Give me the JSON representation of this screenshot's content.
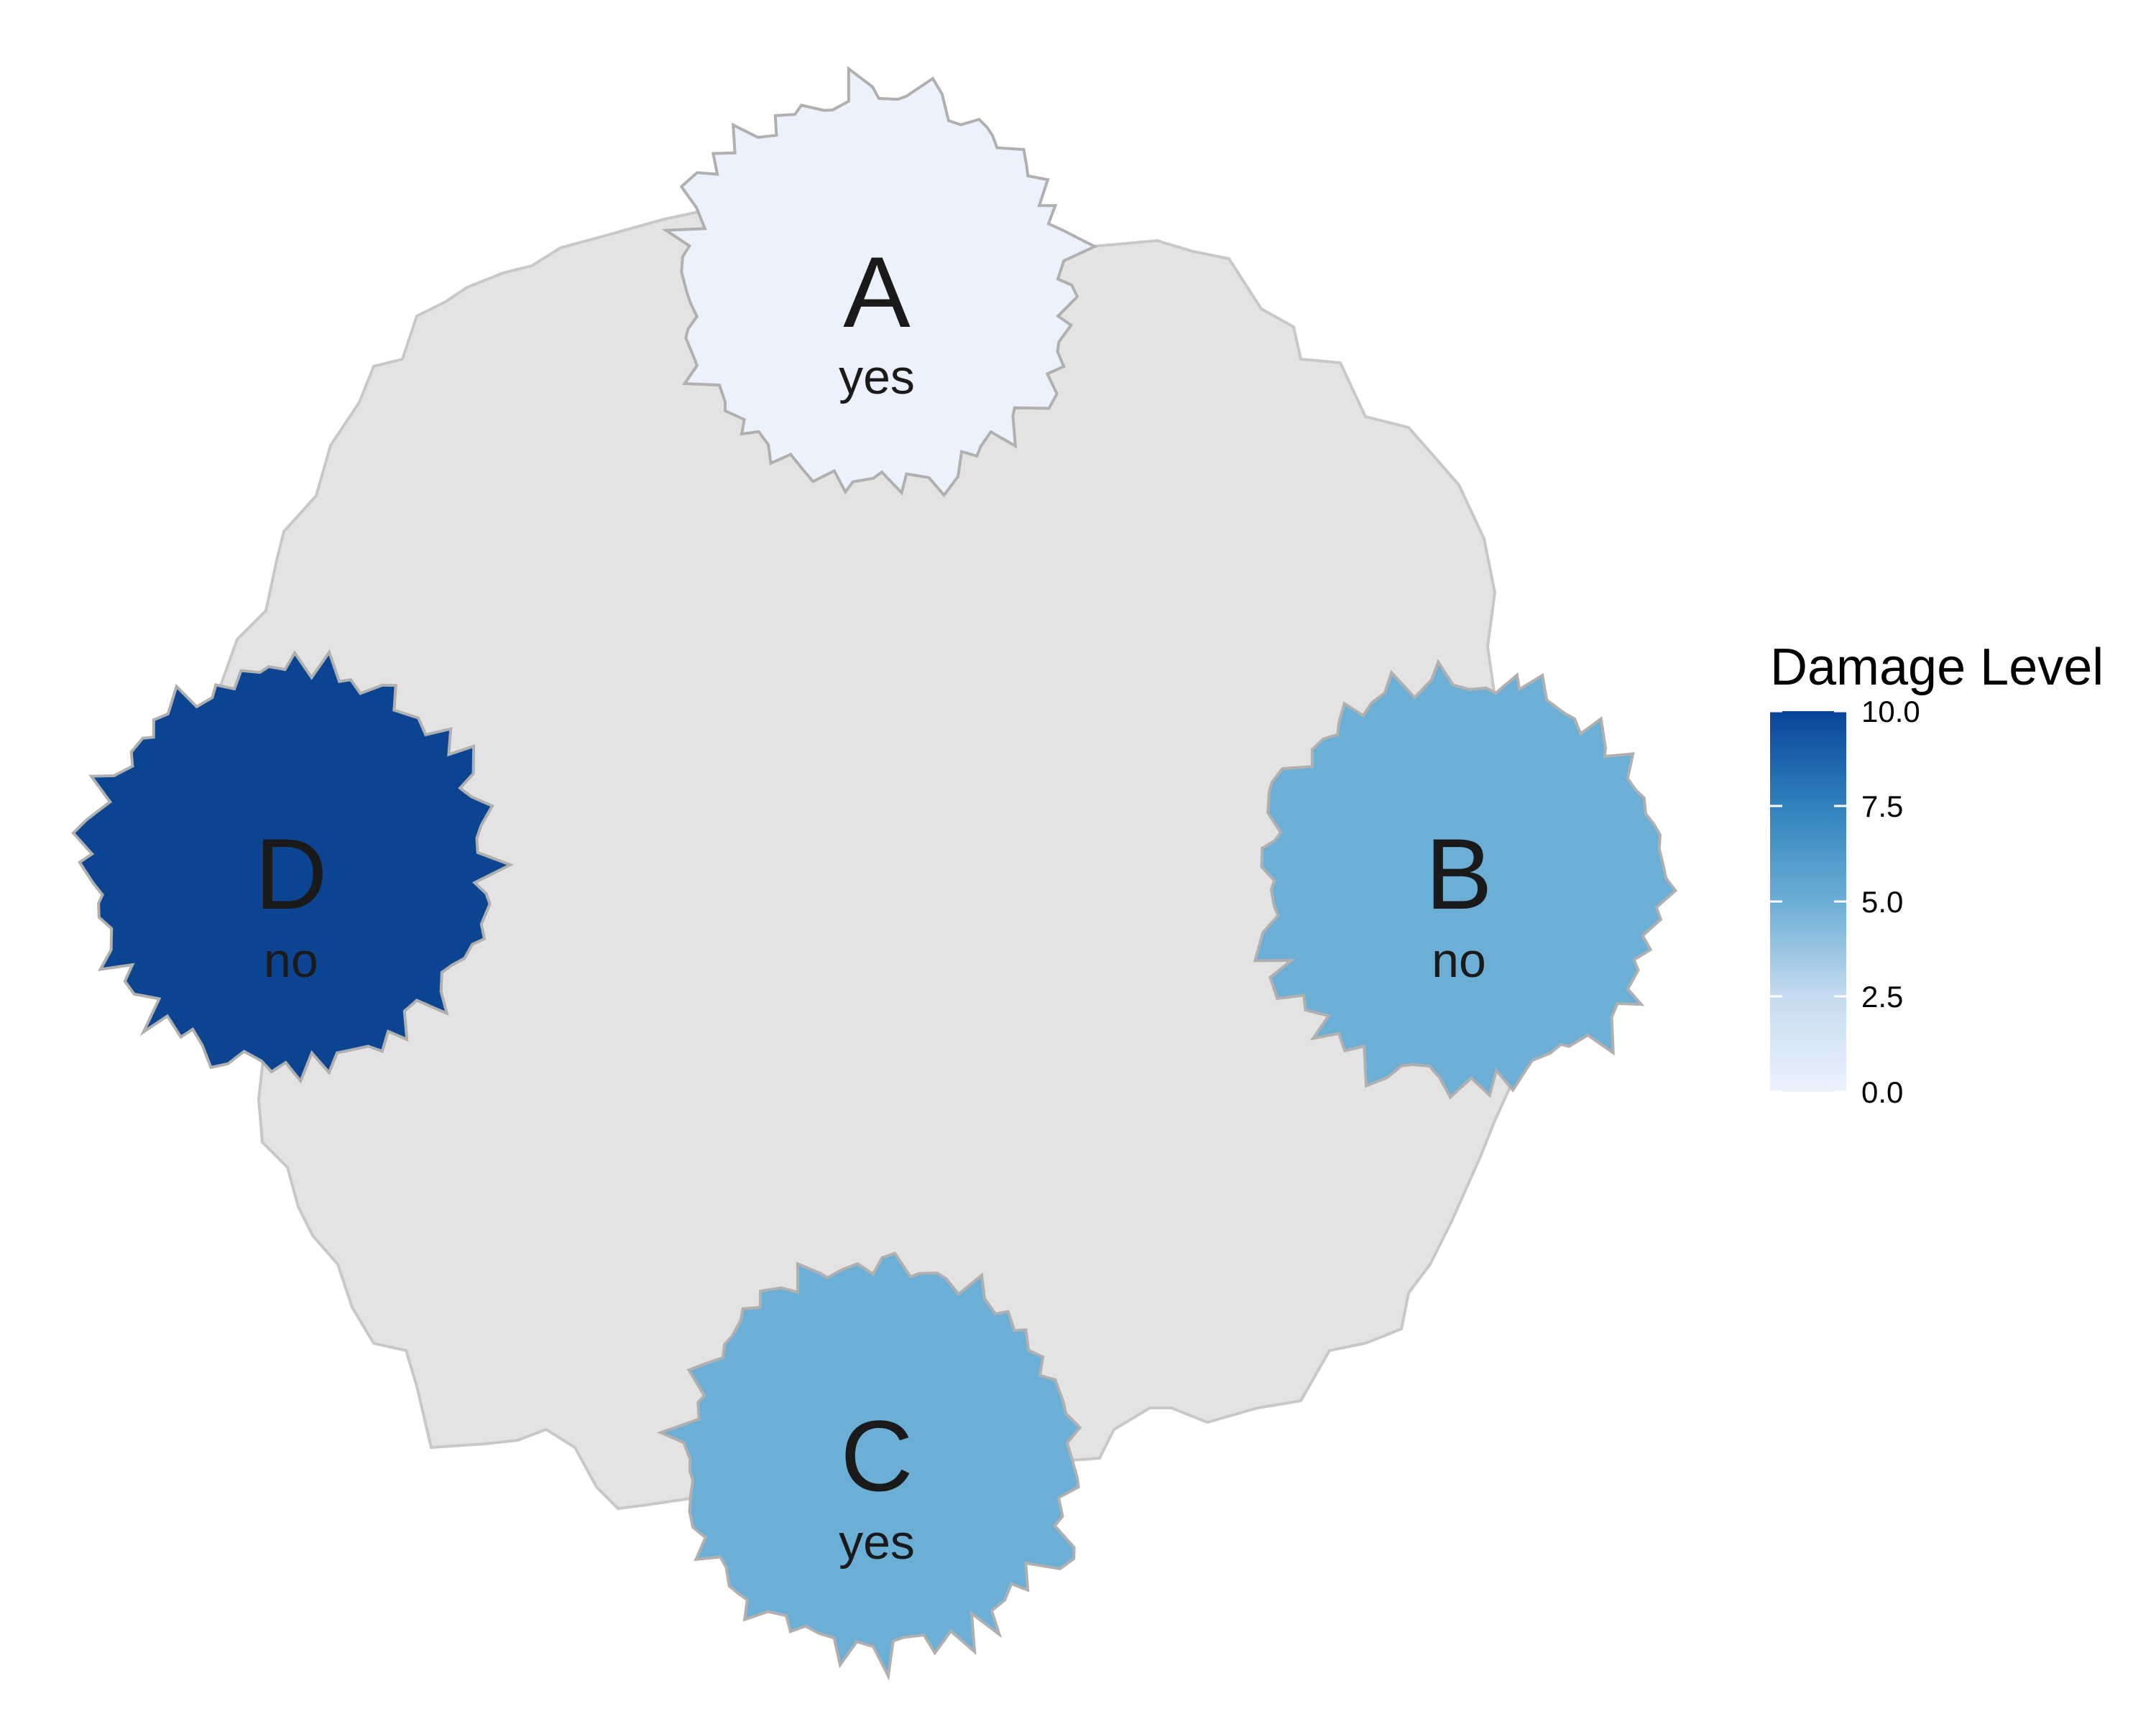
{
  "legend": {
    "title": "Damage Level",
    "ticks": [
      "10.0",
      "7.5",
      "5.0",
      "2.5",
      "0.0"
    ],
    "min": 0,
    "max": 10,
    "colors": {
      "low": "#ebf2fe",
      "mid": "#6baed6",
      "high": "#08449a"
    }
  },
  "central_region": {
    "fill": "#e3e3e3",
    "stroke": "#c8c8c8"
  },
  "nodes": [
    {
      "letter": "A",
      "label": "yes",
      "damage": 0,
      "fill": "#ebf2fe"
    },
    {
      "letter": "B",
      "label": "no",
      "damage": 6,
      "fill": "#6baed6"
    },
    {
      "letter": "C",
      "label": "yes",
      "damage": 6,
      "fill": "#6baed6"
    },
    {
      "letter": "D",
      "label": "no",
      "damage": 10,
      "fill": "#0b4592"
    }
  ]
}
